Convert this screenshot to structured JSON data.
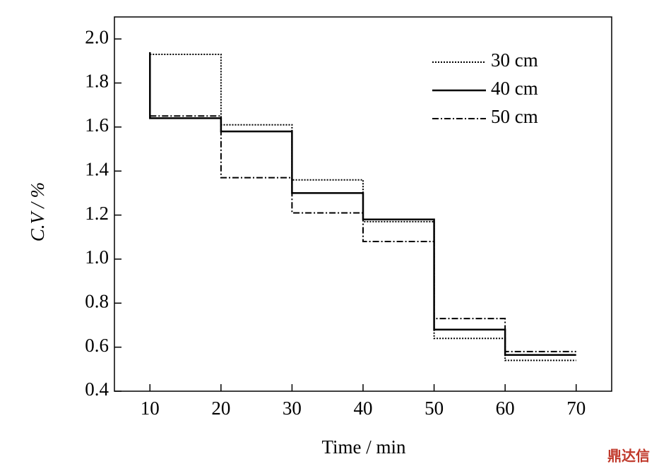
{
  "chart_data": {
    "type": "step",
    "xlabel": "Time / min",
    "ylabel": "C.V / %",
    "x": [
      10,
      10,
      20,
      30,
      40,
      50,
      60,
      70
    ],
    "series": [
      {
        "name": "30 cm",
        "color": "#000000",
        "dash": "2,2",
        "values": [
          1.93,
          1.93,
          1.61,
          1.36,
          1.17,
          0.64,
          0.54,
          0.54
        ]
      },
      {
        "name": "40 cm",
        "color": "#000000",
        "dash": "none",
        "values": [
          1.94,
          1.64,
          1.58,
          1.3,
          1.18,
          0.68,
          0.565,
          0.565
        ]
      },
      {
        "name": "50 cm",
        "color": "#000000",
        "dash": "9,3,2,3",
        "values": [
          1.65,
          1.65,
          1.37,
          1.21,
          1.08,
          0.73,
          0.58,
          0.58
        ]
      }
    ],
    "xlim": [
      5,
      75
    ],
    "xticks": [
      10,
      20,
      30,
      40,
      50,
      60,
      70
    ],
    "ylim": [
      0.4,
      2.1
    ],
    "yticks": [
      {
        "value": 0.4,
        "label": "0.4"
      },
      {
        "value": 0.6,
        "label": "0.6"
      },
      {
        "value": 0.8,
        "label": "0.8"
      },
      {
        "value": 1.0,
        "label": "1.0"
      },
      {
        "value": 1.2,
        "label": "1.2"
      },
      {
        "value": 1.4,
        "label": "1.4"
      },
      {
        "value": 1.6,
        "label": "1.6"
      },
      {
        "value": 1.8,
        "label": "1.8"
      },
      {
        "value": 2.0,
        "label": "2.0"
      }
    ],
    "legend": "upper right",
    "watermark": "鼎达信"
  }
}
